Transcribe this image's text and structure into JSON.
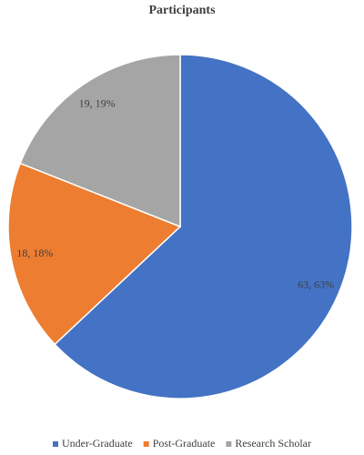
{
  "chart_data": {
    "type": "pie",
    "title": "Participants",
    "categories": [
      "Under-Graduate",
      "Post-Graduate",
      "Research Scholar"
    ],
    "values": [
      63,
      18,
      19
    ],
    "value_labels": [
      "63, 63%",
      "18, 18%",
      "19, 19%"
    ],
    "colors": [
      "#4472c4",
      "#ed7d31",
      "#a5a5a5"
    ],
    "legend": "bottom"
  }
}
